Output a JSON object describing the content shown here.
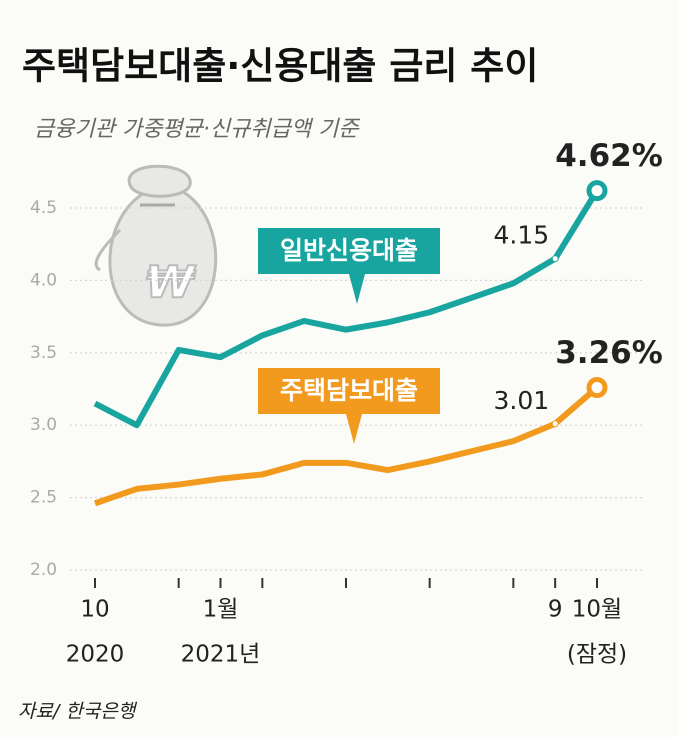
{
  "chart_data": {
    "type": "line",
    "title": "주택담보대출·신용대출 금리 추이",
    "subtitle": "금융기관 가중평균·신규취급액 기준",
    "source": "자료/ 한국은행",
    "categories": [
      "10",
      null,
      null,
      "1월",
      null,
      null,
      null,
      null,
      null,
      null,
      null,
      "9",
      "10월"
    ],
    "category_sublabels": [
      "2020",
      null,
      null,
      "2021년",
      null,
      null,
      null,
      null,
      null,
      null,
      null,
      null,
      "(잠정)"
    ],
    "series": [
      {
        "name": "일반신용대출",
        "color": "#18a49f",
        "values": [
          3.15,
          3.0,
          3.52,
          3.47,
          3.62,
          3.72,
          3.66,
          3.71,
          3.78,
          3.88,
          3.98,
          4.15,
          4.62
        ],
        "value_labels": [
          null,
          null,
          null,
          null,
          null,
          null,
          null,
          null,
          null,
          null,
          null,
          "4.15",
          "4.62%"
        ]
      },
      {
        "name": "주택담보대출",
        "color": "#f29a1e",
        "values": [
          2.46,
          2.56,
          2.59,
          2.63,
          2.66,
          2.74,
          2.74,
          2.69,
          2.75,
          2.82,
          2.89,
          3.01,
          3.26
        ],
        "value_labels": [
          null,
          null,
          null,
          null,
          null,
          null,
          null,
          null,
          null,
          null,
          null,
          "3.01",
          "3.26%"
        ]
      }
    ],
    "ylim": [
      2.0,
      4.75
    ],
    "yticks": [
      {
        "value": 2.0,
        "label": "2.0"
      },
      2.5,
      {
        "value": 3.0,
        "label": "3.0"
      },
      3.5,
      {
        "value": 4.0,
        "label": "4.0"
      },
      4.5
    ],
    "grid": true
  }
}
